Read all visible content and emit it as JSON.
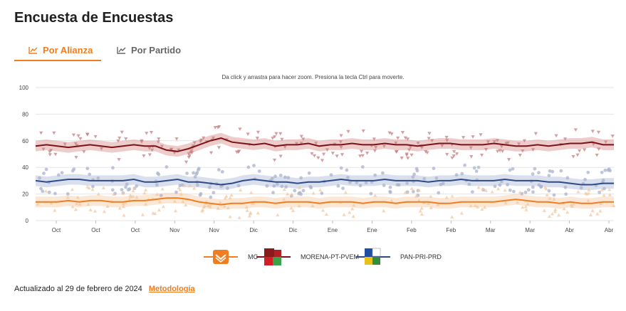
{
  "page": {
    "title": "Encuesta de Encuestas",
    "zoom_hint": "Da click y arrastra para hacer zoom. Presiona la tecla Ctrl para moverte.",
    "updated_text": "Actualizado al 29 de febrero de 2024",
    "methodology_link": "Metodología"
  },
  "tabs": [
    {
      "label": "Por Alianza",
      "active": true,
      "icon": "line-chart-icon"
    },
    {
      "label": "Por Partido",
      "active": false,
      "icon": "line-chart-icon"
    }
  ],
  "legend": [
    {
      "label": "MC",
      "color": "#f07d1f",
      "icon": "mc-logo-icon"
    },
    {
      "label": "MORENA-PT-PVEM",
      "color": "#7a1216",
      "icon": "morena-pt-pvem-logo-icon"
    },
    {
      "label": "PAN-PRI-PRD",
      "color": "#2e4a87",
      "icon": "pan-pri-prd-logo-icon"
    }
  ],
  "chart_data": {
    "type": "line",
    "ylim": [
      0,
      100
    ],
    "yticks": [
      0,
      20,
      40,
      60,
      80,
      100
    ],
    "x_tick_labels": [
      "Oct",
      "Oct",
      "Oct",
      "Nov",
      "Nov",
      "Dic",
      "Dic",
      "Ene",
      "Ene",
      "Feb",
      "Feb",
      "Mar",
      "Mar",
      "Abr",
      "Abr"
    ],
    "grid": true,
    "legend_position": "bottom",
    "series": [
      {
        "name": "MORENA-PT-PVEM",
        "color": "#7a1216",
        "band_color": "#d98f8f",
        "point_color": "#c47f7f",
        "marker": "triangle-down",
        "values": [
          56,
          57,
          56,
          55,
          56,
          57,
          56,
          55,
          56,
          57,
          56,
          56,
          53,
          52,
          54,
          57,
          60,
          62,
          59,
          58,
          57,
          58,
          56,
          57,
          57,
          58,
          56,
          57,
          57,
          58,
          57,
          57,
          58,
          57,
          57,
          56,
          57,
          58,
          58,
          57,
          57,
          57,
          58,
          57,
          56,
          56,
          57,
          56,
          57,
          58,
          58,
          59,
          57,
          57
        ]
      },
      {
        "name": "PAN-PRI-PRD",
        "color": "#2e4a87",
        "band_color": "#aab8d8",
        "point_color": "#a9b3cc",
        "marker": "circle",
        "values": [
          30,
          29,
          30,
          31,
          31,
          30,
          30,
          30,
          30,
          31,
          29,
          29,
          30,
          31,
          29,
          29,
          28,
          27,
          28,
          30,
          31,
          30,
          29,
          29,
          28,
          29,
          29,
          30,
          31,
          30,
          30,
          30,
          31,
          30,
          30,
          30,
          29,
          30,
          30,
          31,
          30,
          30,
          30,
          31,
          30,
          30,
          30,
          29,
          29,
          28,
          27,
          27,
          28,
          28
        ]
      },
      {
        "name": "MC",
        "color": "#f07d1f",
        "band_color": "#f7c9a2",
        "point_color": "#f3c89f",
        "marker": "triangle-up",
        "values": [
          14,
          14,
          14,
          15,
          14,
          15,
          15,
          14,
          14,
          15,
          15,
          16,
          17,
          17,
          16,
          14,
          13,
          12,
          13,
          13,
          14,
          14,
          13,
          14,
          14,
          14,
          13,
          14,
          14,
          14,
          13,
          14,
          14,
          13,
          14,
          14,
          14,
          13,
          13,
          14,
          14,
          14,
          14,
          15,
          16,
          15,
          14,
          14,
          13,
          14,
          13,
          13,
          14,
          14
        ]
      }
    ]
  }
}
